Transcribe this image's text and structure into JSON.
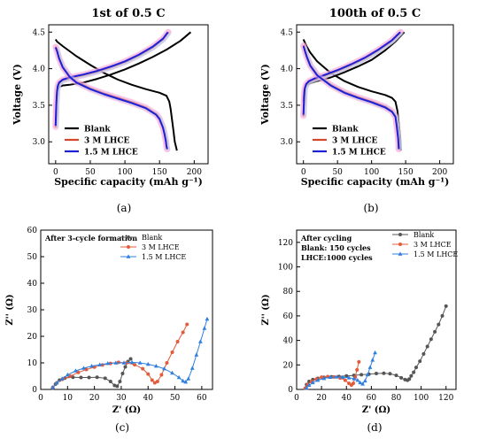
{
  "colors": {
    "blank": "#000000",
    "lhce3": "#d4452a",
    "lhce15": "#1f1fd6",
    "blank_eis": "#555555",
    "lhce3_eis": "#e35b3a",
    "lhce15_eis": "#2f7fe0",
    "pink_haze": "#f3a7d6",
    "cyan_haze": "#9fe6f2"
  },
  "chart_data": [
    {
      "panel": "a",
      "type": "line",
      "title": "1st of 0.5 C",
      "xlabel": "Specific capacity (mAh g⁻¹)",
      "ylabel": "Voltage (V)",
      "xlim": [
        -10,
        220
      ],
      "ylim": [
        2.7,
        4.6
      ],
      "xticks": [
        "0",
        "50",
        "100",
        "150",
        "200"
      ],
      "yticks": [
        "3.0",
        "3.5",
        "4.0",
        "4.5"
      ],
      "legend": [
        "Blank",
        "3 M LHCE",
        "1.5 M LHCE"
      ],
      "legend_position": "bottom-left",
      "caption": "(a)",
      "series": [
        {
          "name": "Blank",
          "color_key": "blank",
          "charge": {
            "x": [
              1,
              3,
              5,
              8,
              10,
              20,
              40,
              60,
              80,
              100,
              120,
              140,
              160,
              180,
              195
            ],
            "y": [
              3.6,
              3.72,
              3.75,
              3.76,
              3.77,
              3.78,
              3.81,
              3.86,
              3.92,
              3.99,
              4.07,
              4.16,
              4.26,
              4.38,
              4.5
            ]
          },
          "discharge": {
            "x": [
              0,
              2,
              10,
              30,
              50,
              70,
              90,
              110,
              130,
              150,
              160,
              164,
              166,
              168,
              170,
              172,
              175
            ],
            "y": [
              4.4,
              4.37,
              4.31,
              4.17,
              4.05,
              3.94,
              3.85,
              3.78,
              3.72,
              3.67,
              3.63,
              3.55,
              3.45,
              3.3,
              3.15,
              3.0,
              2.88
            ]
          }
        },
        {
          "name": "3 M LHCE",
          "color_key": "lhce3",
          "charge": {
            "x": [
              0,
              1,
              2,
              3,
              5,
              10,
              20,
              40,
              60,
              80,
              100,
              120,
              140,
              155,
              163
            ],
            "y": [
              3.2,
              3.5,
              3.68,
              3.75,
              3.8,
              3.84,
              3.87,
              3.91,
              3.96,
              4.02,
              4.09,
              4.18,
              4.29,
              4.4,
              4.5
            ]
          },
          "discharge": {
            "x": [
              0,
              2,
              5,
              10,
              20,
              30,
              50,
              70,
              90,
              110,
              130,
              145,
              150,
              155,
              157,
              159,
              160,
              161
            ],
            "y": [
              4.3,
              4.25,
              4.15,
              4.03,
              3.9,
              3.82,
              3.73,
              3.66,
              3.6,
              3.54,
              3.47,
              3.38,
              3.32,
              3.2,
              3.12,
              3.02,
              2.95,
              2.9
            ]
          }
        },
        {
          "name": "1.5 M LHCE",
          "color_key": "lhce15",
          "charge": {
            "x": [
              0,
              1,
              2,
              3,
              5,
              10,
              20,
              40,
              60,
              80,
              100,
              120,
              140,
              155,
              162
            ],
            "y": [
              3.22,
              3.52,
              3.69,
              3.76,
              3.81,
              3.85,
              3.88,
              3.92,
              3.97,
              4.03,
              4.1,
              4.19,
              4.3,
              4.41,
              4.5
            ]
          },
          "discharge": {
            "x": [
              0,
              2,
              5,
              10,
              20,
              30,
              50,
              70,
              90,
              110,
              130,
              145,
              150,
              155,
              157,
              159,
              160,
              161
            ],
            "y": [
              4.29,
              4.24,
              4.14,
              4.02,
              3.89,
              3.81,
              3.72,
              3.65,
              3.59,
              3.53,
              3.46,
              3.37,
              3.31,
              3.19,
              3.11,
              3.01,
              2.94,
              2.9
            ]
          }
        }
      ]
    },
    {
      "panel": "b",
      "type": "line",
      "title": "100th of 0.5 C",
      "xlabel": "Specific capacity (mAh g⁻¹)",
      "ylabel": "Voltage (V)",
      "xlim": [
        -10,
        220
      ],
      "ylim": [
        2.7,
        4.6
      ],
      "xticks": [
        "0",
        "50",
        "100",
        "150",
        "200"
      ],
      "yticks": [
        "3.0",
        "3.5",
        "4.0",
        "4.5"
      ],
      "legend": [
        "Blank",
        "3 M LHCE",
        "1.5 M LHCE"
      ],
      "legend_position": "bottom-left",
      "caption": "(b)",
      "series": [
        {
          "name": "Blank",
          "color_key": "blank",
          "charge": {
            "x": [
              0,
              1,
              3,
              5,
              10,
              20,
              40,
              60,
              80,
              100,
              120,
              135,
              148
            ],
            "y": [
              3.55,
              3.7,
              3.76,
              3.78,
              3.8,
              3.83,
              3.88,
              3.95,
              4.03,
              4.12,
              4.25,
              4.37,
              4.5
            ]
          },
          "discharge": {
            "x": [
              0,
              2,
              5,
              10,
              20,
              40,
              60,
              80,
              100,
              120,
              130,
              135,
              138,
              140,
              142,
              143
            ],
            "y": [
              4.4,
              4.36,
              4.3,
              4.22,
              4.1,
              3.94,
              3.83,
              3.75,
              3.69,
              3.64,
              3.6,
              3.55,
              3.42,
              3.25,
              3.05,
              2.88
            ]
          }
        },
        {
          "name": "3 M LHCE",
          "color_key": "lhce3",
          "charge": {
            "x": [
              0,
              1,
              2,
              4,
              8,
              15,
              30,
              50,
              70,
              90,
              110,
              130,
              143
            ],
            "y": [
              3.35,
              3.6,
              3.72,
              3.78,
              3.82,
              3.85,
              3.9,
              3.97,
              4.05,
              4.14,
              4.25,
              4.38,
              4.5
            ]
          },
          "discharge": {
            "x": [
              0,
              2,
              5,
              10,
              20,
              40,
              60,
              80,
              100,
              120,
              130,
              135,
              137,
              139,
              140
            ],
            "y": [
              4.32,
              4.26,
              4.17,
              4.05,
              3.92,
              3.78,
              3.68,
              3.61,
              3.55,
              3.48,
              3.42,
              3.35,
              3.22,
              3.05,
              2.9
            ]
          }
        },
        {
          "name": "1.5 M LHCE",
          "color_key": "lhce15",
          "charge": {
            "x": [
              0,
              1,
              2,
              4,
              8,
              15,
              30,
              50,
              70,
              90,
              110,
              130,
              142
            ],
            "y": [
              3.37,
              3.62,
              3.73,
              3.79,
              3.83,
              3.86,
              3.91,
              3.98,
              4.06,
              4.15,
              4.26,
              4.39,
              4.5
            ]
          },
          "discharge": {
            "x": [
              0,
              2,
              5,
              10,
              20,
              40,
              60,
              80,
              100,
              120,
              130,
              135,
              137,
              139,
              140
            ],
            "y": [
              4.31,
              4.25,
              4.16,
              4.04,
              3.91,
              3.77,
              3.67,
              3.6,
              3.54,
              3.47,
              3.41,
              3.34,
              3.21,
              3.04,
              2.9
            ]
          }
        }
      ]
    },
    {
      "panel": "c",
      "type": "scatter",
      "title": "",
      "annotation": "After 3-cycle formation",
      "xlabel": "Z' (Ω)",
      "ylabel": "Z'' (Ω)",
      "xlim": [
        0,
        64
      ],
      "ylim": [
        0,
        60
      ],
      "xticks": [
        "0",
        "10",
        "20",
        "30",
        "40",
        "50",
        "60"
      ],
      "yticks": [
        "0",
        "10",
        "20",
        "30",
        "40",
        "50",
        "60"
      ],
      "legend": [
        "Blank",
        "3 M LHCE",
        "1.5 M LHCE"
      ],
      "legend_position": "top-center",
      "caption": "(c)",
      "series": [
        {
          "name": "Blank",
          "color_key": "blank_eis",
          "marker": "circle",
          "x": [
            4.5,
            5.5,
            7,
            9,
            12,
            15,
            18,
            21,
            24,
            26,
            27.5,
            28.5,
            29.5,
            30.5,
            31.5,
            32.5,
            33.5
          ],
          "y": [
            0.5,
            2,
            3.5,
            4.3,
            4.6,
            4.5,
            4.5,
            4.6,
            4.2,
            3,
            1.5,
            1.2,
            3,
            6,
            8.5,
            10.5,
            11.5
          ]
        },
        {
          "name": "3 M LHCE",
          "color_key": "lhce3_eis",
          "marker": "circle",
          "x": [
            4.5,
            6,
            8,
            11,
            14,
            17,
            20,
            23,
            26,
            29,
            32,
            35,
            38,
            40,
            41.5,
            42.5,
            43.5,
            45,
            47,
            49,
            51,
            53,
            54.5
          ],
          "y": [
            0.8,
            2.5,
            3.8,
            5,
            6.4,
            7.5,
            8.4,
            9.2,
            9.8,
            10.2,
            10,
            9.3,
            7.8,
            5.8,
            3.5,
            2.5,
            3,
            5.5,
            10,
            14,
            18,
            21.5,
            24.5
          ]
        },
        {
          "name": "1.5 M LHCE",
          "color_key": "lhce15_eis",
          "marker": "triangle",
          "x": [
            4.5,
            6,
            8,
            10,
            13,
            16,
            19,
            22,
            25,
            28,
            31,
            34,
            37,
            40,
            43,
            46,
            49,
            51.5,
            53,
            54,
            55,
            56.5,
            58,
            59.5,
            61,
            62
          ],
          "y": [
            0.8,
            2.5,
            4,
            5.5,
            7,
            8,
            8.8,
            9.3,
            9.8,
            10,
            10,
            10.2,
            10,
            9.5,
            8.8,
            7.8,
            6.2,
            4.5,
            3.2,
            2.8,
            4,
            8,
            13,
            18,
            23,
            26.5
          ]
        }
      ]
    },
    {
      "panel": "d",
      "type": "scatter",
      "title": "",
      "annotation": [
        "After cycling",
        "Blank: 150 cycles",
        "LHCE:1000 cycles"
      ],
      "xlabel": "Z' (Ω)",
      "ylabel": "Z'' (Ω)",
      "xlim": [
        0,
        128
      ],
      "ylim": [
        0,
        130
      ],
      "xticks": [
        "0",
        "20",
        "40",
        "60",
        "80",
        "100",
        "120"
      ],
      "yticks": [
        "0",
        "20",
        "40",
        "60",
        "80",
        "100",
        "120"
      ],
      "legend": [
        "Blank",
        "3 M LHCE",
        "1.5 M LHCE"
      ],
      "legend_position": "top-right",
      "caption": "(d)",
      "series": [
        {
          "name": "Blank",
          "color_key": "blank_eis",
          "marker": "circle",
          "x": [
            7,
            8,
            10,
            13,
            17,
            22,
            28,
            34,
            40,
            46,
            52,
            58,
            64,
            70,
            75,
            80,
            84,
            87,
            89,
            90.5,
            92,
            94,
            96,
            99,
            102,
            105,
            108,
            111,
            114,
            117,
            120
          ],
          "y": [
            1,
            4,
            6.5,
            8,
            9,
            9.8,
            10.3,
            10.6,
            11,
            11.5,
            12,
            12.5,
            13,
            13.2,
            12.8,
            11.5,
            9.5,
            8,
            7.5,
            8.5,
            11,
            14,
            18,
            23,
            29,
            35,
            41,
            47,
            53,
            60,
            68
          ]
        },
        {
          "name": "3 M LHCE",
          "color_key": "lhce3_eis",
          "marker": "circle",
          "x": [
            7,
            9,
            12,
            16,
            20,
            25,
            30,
            35,
            39,
            42,
            44,
            45.5,
            47,
            48.5,
            50
          ],
          "y": [
            1,
            4,
            6.5,
            8.5,
            10,
            10.5,
            10.2,
            9.3,
            7.5,
            5,
            3.5,
            5,
            10,
            16,
            22.5
          ]
        },
        {
          "name": "1.5 M LHCE",
          "color_key": "lhce15_eis",
          "marker": "triangle",
          "x": [
            8,
            10,
            13,
            17,
            22,
            27,
            32,
            37,
            42,
            46,
            49,
            51,
            53,
            55,
            57,
            59,
            61,
            63
          ],
          "y": [
            1,
            3.5,
            5.5,
            7.5,
            9,
            10,
            10.2,
            10,
            9.5,
            8.8,
            7.5,
            5.5,
            4.5,
            7,
            12,
            18,
            24,
            30
          ]
        }
      ]
    }
  ]
}
